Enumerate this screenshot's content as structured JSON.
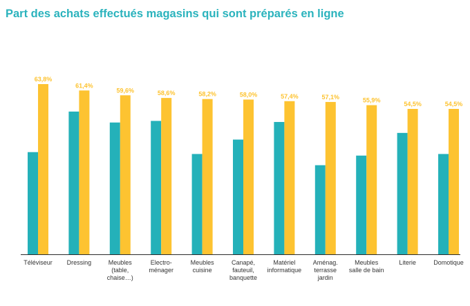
{
  "title": "Part des achats effectués magasins qui sont préparés en ligne",
  "colors": {
    "title": "#2bb3bd",
    "teal": "#24b1b9",
    "yellow": "#fdc331",
    "axis": "#2a2a2a",
    "label": "#333333"
  },
  "chart_data": {
    "type": "bar",
    "title": "Part des achats effectués magasins qui sont préparés en ligne",
    "categories": [
      [
        "Téléviseur"
      ],
      [
        "Dressing"
      ],
      [
        "Meubles",
        "(table,",
        "chaise…)"
      ],
      [
        "Electro-",
        "ménager"
      ],
      [
        "Meubles",
        "cuisine"
      ],
      [
        "Canapé,",
        "fauteuil,",
        "banquette"
      ],
      [
        "Matériel",
        "informatique"
      ],
      [
        "Aménag.",
        "terrasse",
        "jardin"
      ],
      [
        "Meubles",
        "salle de bain"
      ],
      [
        "Literie"
      ],
      [
        "Domotique"
      ]
    ],
    "series": [
      {
        "values": [
          38.3,
          53.5,
          49.4,
          50.0,
          37.6,
          43.0,
          49.6,
          33.4,
          37.0,
          45.5,
          37.6
        ]
      },
      {
        "values": [
          63.8,
          61.4,
          59.6,
          58.6,
          58.2,
          58.0,
          57.4,
          57.1,
          55.9,
          54.5,
          54.5
        ],
        "labels": [
          "63,8%",
          "61,4%",
          "59,6%",
          "58,6%",
          "58,2%",
          "58,0%",
          "57,4%",
          "57,1%",
          "55,9%",
          "54,5%",
          "54,5%"
        ]
      }
    ],
    "ylim": [
      0,
      70
    ],
    "grid": false,
    "legend": "none"
  }
}
